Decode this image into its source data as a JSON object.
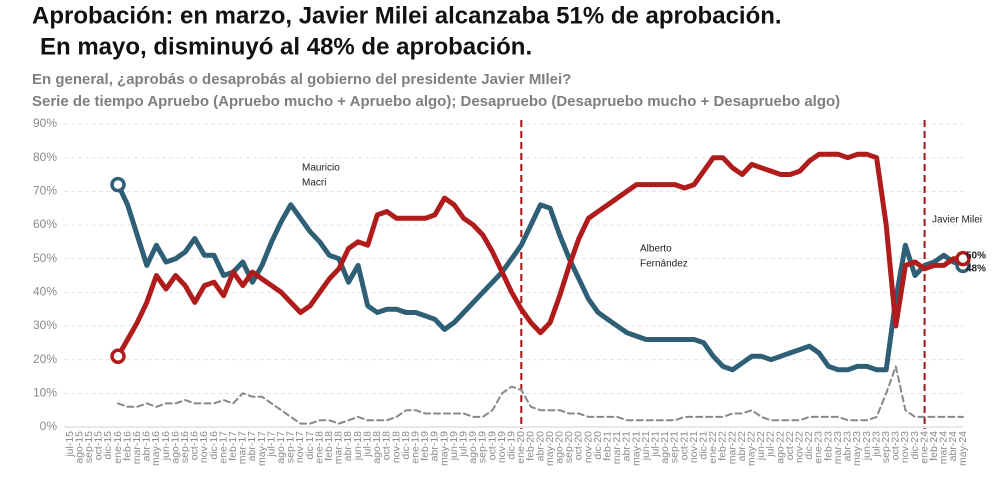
{
  "chart_data": {
    "type": "line",
    "title": [
      "Aprobación: en marzo, Javier Milei alcanzaba 51% de aprobación.",
      "En mayo, disminuyó al 48% de aprobación."
    ],
    "subtitle": [
      "En general, ¿aprobás o desaprobás al gobierno del presidente Javier MIlei?",
      "Serie de tiempo Apruebo (Apruebo mucho + Apruebo algo); Desapruebo (Desapruebo mucho + Desapruebo algo)"
    ],
    "categories": [
      "jul-15",
      "ago-15",
      "sep-15",
      "oct-15",
      "dic-15",
      "ene-16",
      "feb-16",
      "mar-16",
      "abr-16",
      "may-16",
      "jun-16",
      "ago-16",
      "sep-16",
      "oct-16",
      "nov-16",
      "dic-16",
      "ene-17",
      "feb-17",
      "mar-17",
      "abr-17",
      "may-17",
      "jul-17",
      "ago-17",
      "sep-17",
      "nov-17",
      "dic-17",
      "ene-18",
      "feb-18",
      "mar-18",
      "abr-18",
      "jun-18",
      "jul-18",
      "ago-18",
      "oct-18",
      "nov-18",
      "dic-18",
      "ene-19",
      "feb-19",
      "abr-19",
      "may-19",
      "jun-19",
      "jul-19",
      "ago-19",
      "sep-19",
      "oct-19",
      "nov-19",
      "dic-19",
      "ene-20",
      "feb-20",
      "abr-20",
      "may-20",
      "ago-20",
      "sep-20",
      "oct-20",
      "nov-20",
      "dic-20",
      "feb-21",
      "mar-21",
      "abr-21",
      "may-21",
      "jun-21",
      "jul-21",
      "ago-21",
      "sep-21",
      "oct-21",
      "nov-21",
      "dic-21",
      "ene-22",
      "feb-22",
      "mar-22",
      "abr-22",
      "may-22",
      "jun-22",
      "jul-22",
      "ago-22",
      "oct-22",
      "nov-22",
      "dic-22",
      "ene-23",
      "feb-23",
      "mar-23",
      "abr-23",
      "may-23",
      "jun-23",
      "jul-23",
      "sep-23",
      "oct-23",
      "nov-23",
      "dic-23",
      "ene-24",
      "feb-24",
      "mar-24",
      "abr-24",
      "may-24"
    ],
    "series": [
      {
        "color": "#2e5f75",
        "width": 5,
        "end_label": "48%",
        "values": [
          null,
          null,
          null,
          null,
          null,
          72,
          66,
          57,
          48,
          54,
          49,
          50,
          52,
          56,
          51,
          51,
          45,
          46,
          49,
          43,
          48,
          55,
          61,
          66,
          62,
          58,
          55,
          51,
          50,
          43,
          48,
          36,
          34,
          35,
          35,
          34,
          34,
          33,
          32,
          29,
          31,
          34,
          37,
          40,
          43,
          46,
          50,
          54,
          60,
          66,
          65,
          57,
          50,
          44,
          38,
          34,
          32,
          30,
          28,
          27,
          26,
          26,
          26,
          26,
          26,
          26,
          25,
          21,
          18,
          17,
          19,
          21,
          21,
          20,
          21,
          22,
          23,
          24,
          22,
          18,
          17,
          17,
          18,
          18,
          17,
          17,
          38,
          54,
          45,
          48,
          49,
          51,
          49,
          48
        ]
      },
      {
        "color": "#b01c1c",
        "width": 5,
        "end_label": "50%",
        "values": [
          null,
          null,
          null,
          null,
          null,
          21,
          26,
          31,
          37,
          45,
          41,
          45,
          42,
          37,
          42,
          43,
          39,
          46,
          42,
          46,
          44,
          42,
          40,
          37,
          34,
          36,
          40,
          44,
          47,
          53,
          55,
          54,
          63,
          64,
          62,
          62,
          62,
          62,
          63,
          68,
          66,
          62,
          60,
          57,
          52,
          46,
          40,
          35,
          31,
          28,
          31,
          39,
          48,
          56,
          62,
          64,
          66,
          68,
          70,
          72,
          72,
          72,
          72,
          72,
          71,
          72,
          76,
          80,
          80,
          77,
          75,
          78,
          77,
          76,
          75,
          75,
          76,
          79,
          81,
          81,
          81,
          80,
          81,
          81,
          80,
          60,
          30,
          48,
          49,
          47,
          48,
          48,
          50,
          50
        ]
      },
      {
        "color": "#888888",
        "width": 2,
        "dashed": true,
        "values": [
          null,
          null,
          null,
          null,
          null,
          7,
          6,
          6,
          7,
          6,
          7,
          7,
          8,
          7,
          7,
          7,
          8,
          7,
          10,
          9,
          9,
          7,
          5,
          3,
          1,
          1,
          2,
          2,
          1,
          2,
          3,
          2,
          2,
          2,
          3,
          5,
          5,
          4,
          4,
          4,
          4,
          4,
          3,
          3,
          5,
          10,
          12,
          11,
          6,
          5,
          5,
          5,
          4,
          4,
          3,
          3,
          3,
          3,
          2,
          2,
          2,
          2,
          2,
          2,
          3,
          3,
          3,
          3,
          3,
          4,
          4,
          5,
          3,
          2,
          2,
          2,
          2,
          3,
          3,
          3,
          3,
          2,
          2,
          2,
          3,
          10,
          18,
          5,
          3,
          3,
          3,
          3,
          3,
          3
        ]
      }
    ],
    "annotations": [
      [
        "Mauricio",
        "Macri"
      ],
      [
        "Alberto",
        "Fernández"
      ],
      [
        "Javier Milei"
      ]
    ],
    "vlines": [
      "ene-20",
      "ene-24"
    ],
    "ylim": [
      0,
      90
    ],
    "yticks": [
      {
        "value": 0,
        "label": "0%"
      },
      {
        "value": 10,
        "label": "10%"
      },
      {
        "value": 20,
        "label": "20%"
      },
      {
        "value": 30,
        "label": "30%"
      },
      {
        "value": 40,
        "label": "40%"
      },
      {
        "value": 50,
        "label": "50%"
      },
      {
        "value": 60,
        "label": "60%"
      },
      {
        "value": 70,
        "label": "70%"
      },
      {
        "value": 80,
        "label": "80%"
      },
      {
        "value": 90,
        "label": "90%"
      }
    ],
    "grid": true
  }
}
